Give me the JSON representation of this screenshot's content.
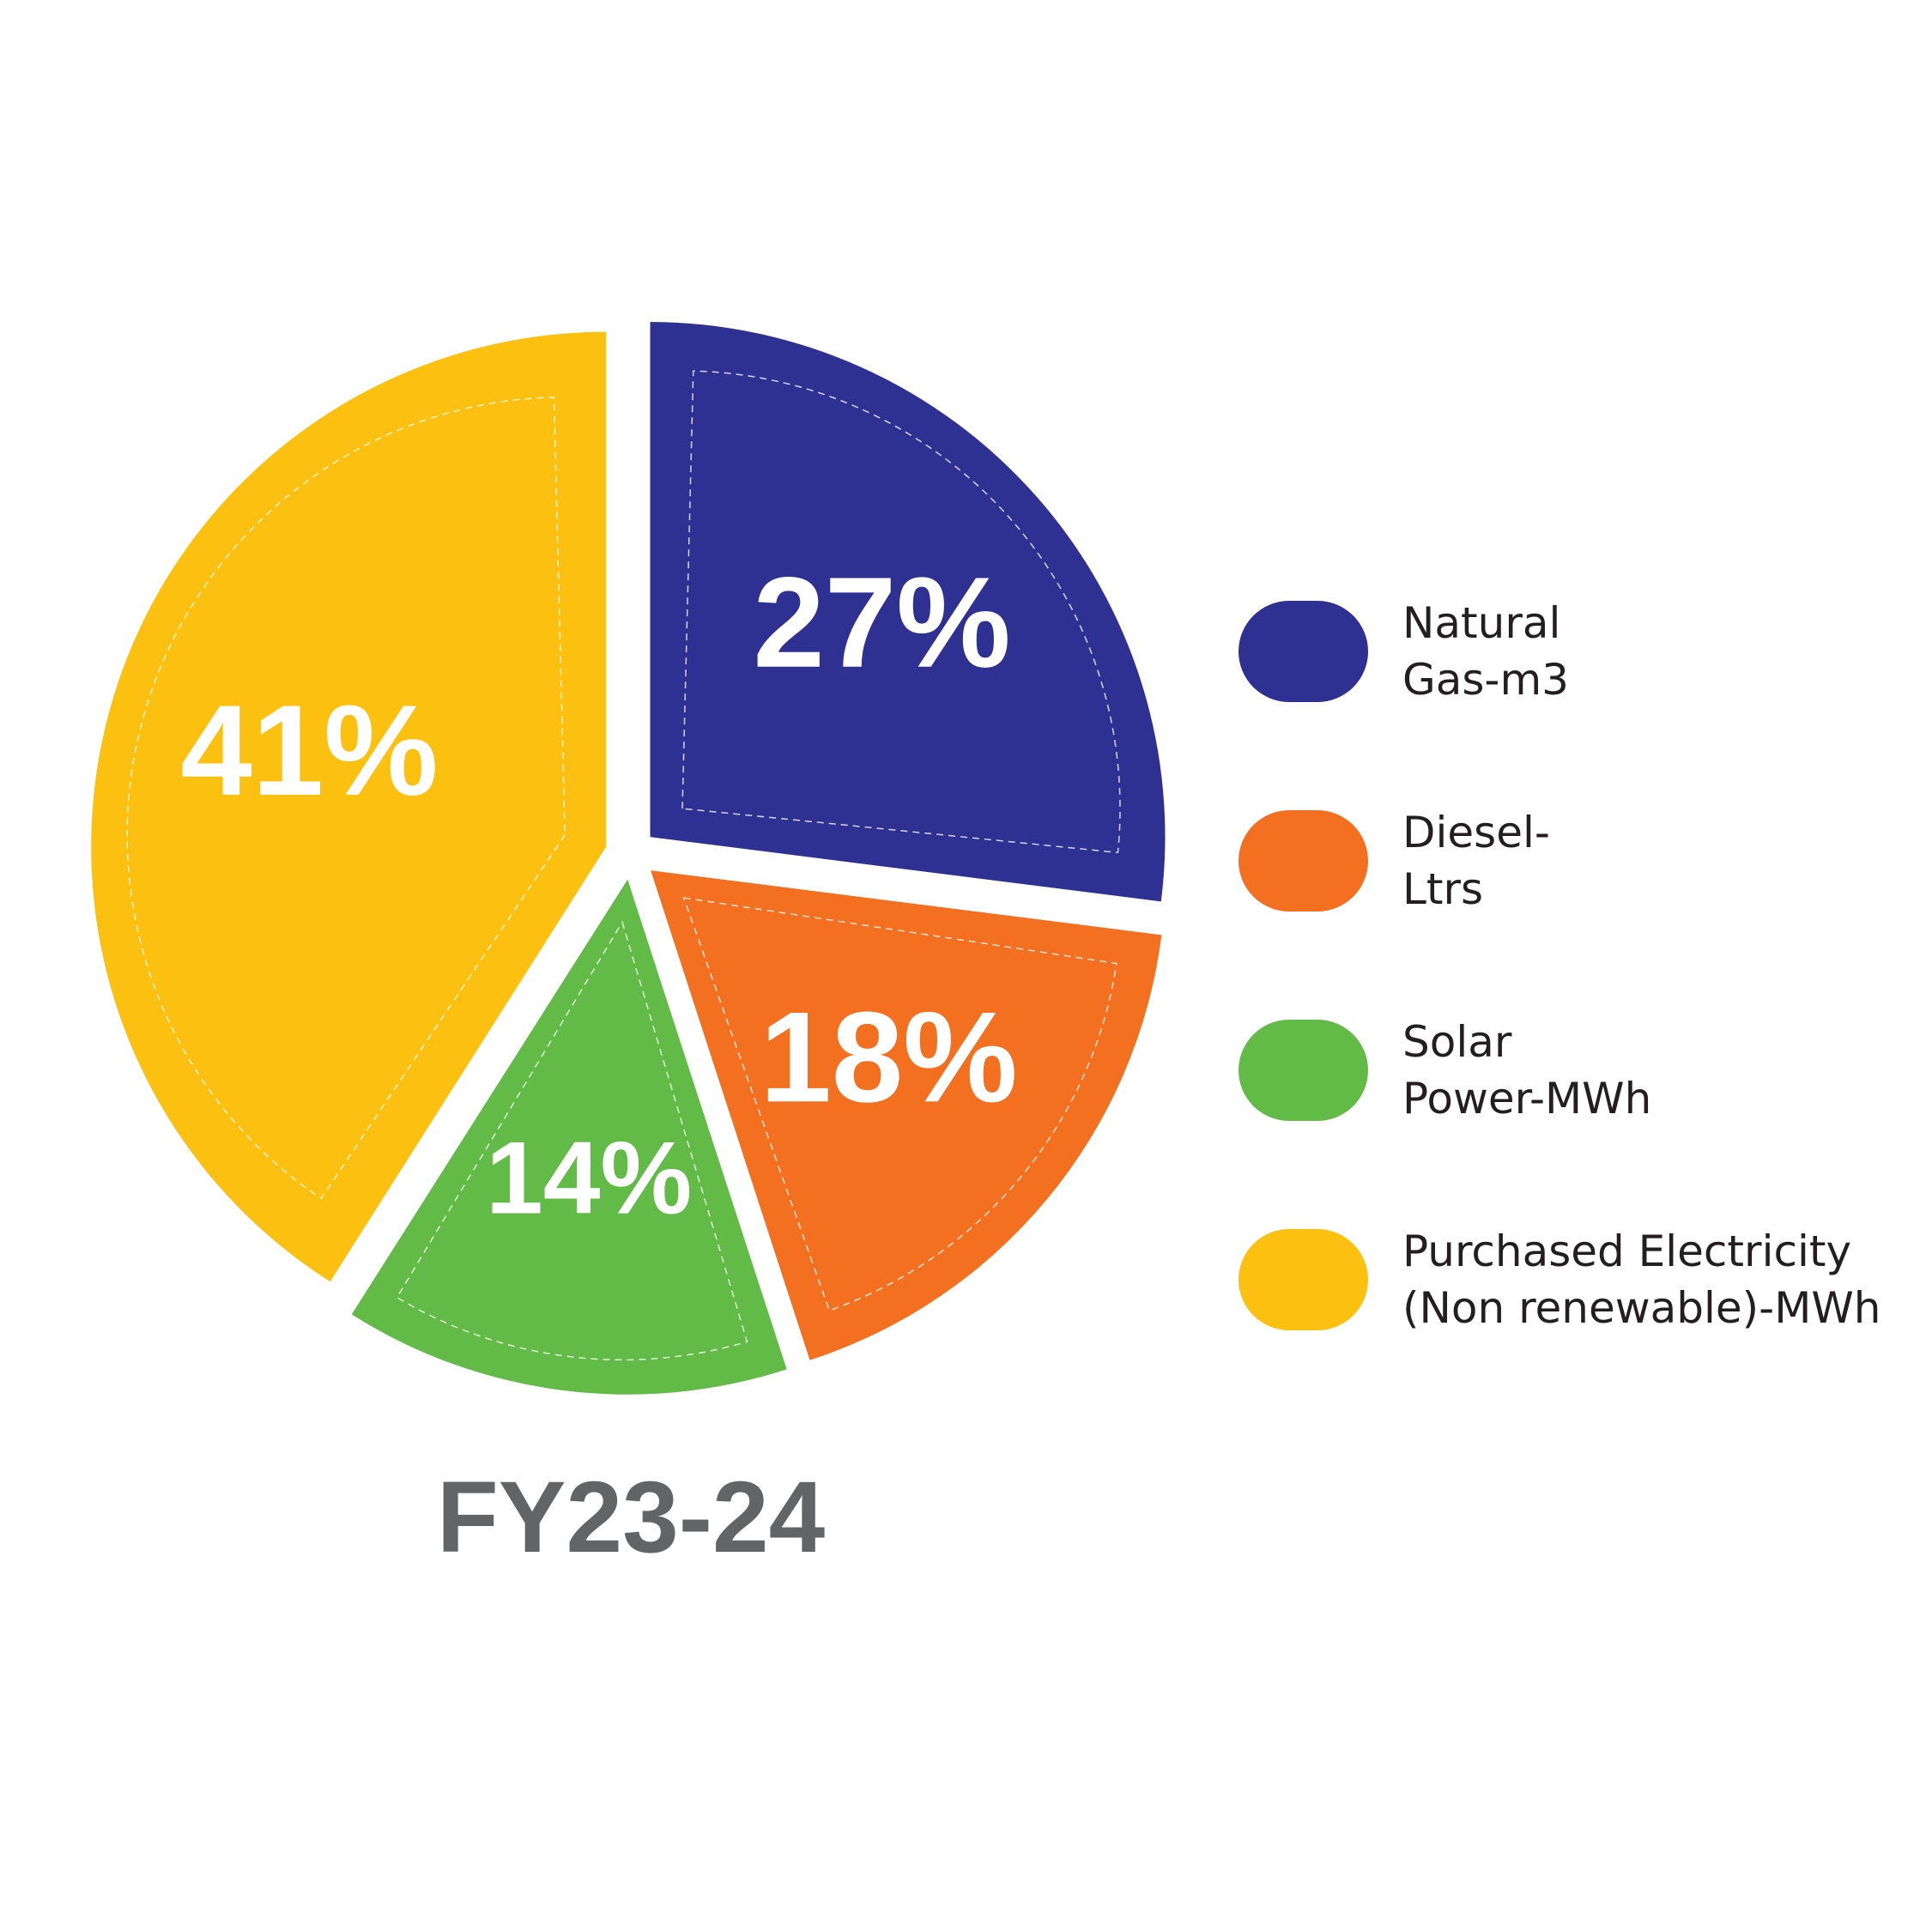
{
  "chart_data": {
    "type": "pie",
    "title": "FY23-24",
    "categories": [
      "Natural\nGas-m3",
      "Diesel-\nLtrs",
      "Solar\nPower-MWh",
      "Purchased Electricity\n(Non renewable)-MWh"
    ],
    "values": [
      27,
      18,
      14,
      41
    ],
    "value_labels": [
      "27%",
      "18%",
      "14%",
      "41%"
    ],
    "colors": [
      "#2e3192",
      "#f37021",
      "#62bb46",
      "#fcc010"
    ]
  }
}
